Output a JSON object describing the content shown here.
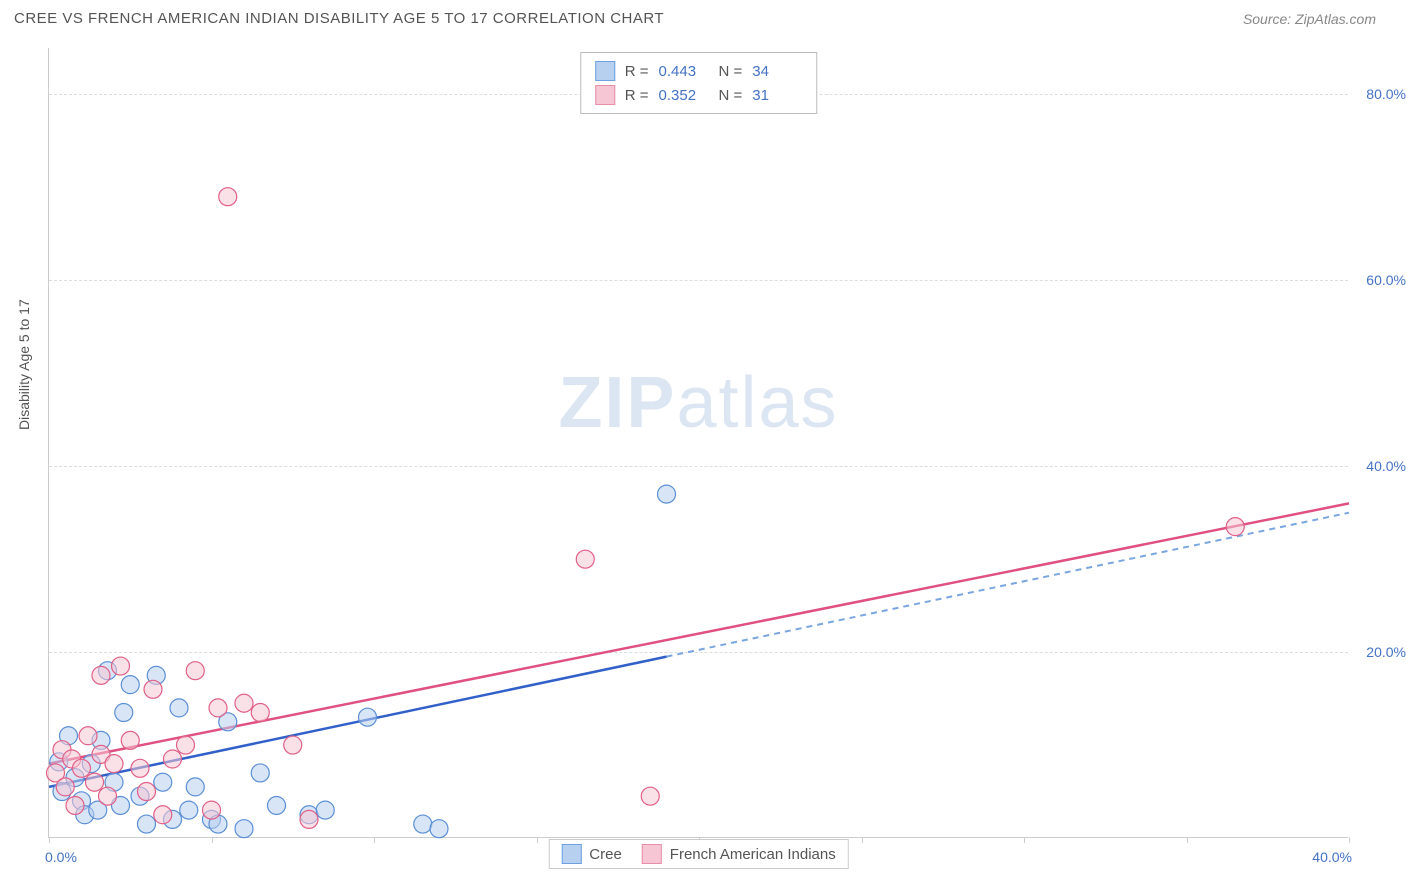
{
  "header": {
    "title": "CREE VS FRENCH AMERICAN INDIAN DISABILITY AGE 5 TO 17 CORRELATION CHART",
    "source": "Source: ZipAtlas.com"
  },
  "watermark": {
    "zip": "ZIP",
    "atlas": "atlas"
  },
  "chart": {
    "type": "scatter",
    "ylabel": "Disability Age 5 to 17",
    "xlim": [
      0,
      40
    ],
    "ylim": [
      0,
      85
    ],
    "xticks": [
      0,
      5,
      10,
      15,
      20,
      25,
      30,
      35,
      40
    ],
    "yticks": [
      20,
      40,
      60,
      80
    ],
    "xlabel_min": "0.0%",
    "xlabel_max": "40.0%",
    "ytick_labels": [
      "20.0%",
      "40.0%",
      "60.0%",
      "80.0%"
    ],
    "background_color": "#ffffff",
    "grid_color": "#dddddd",
    "axis_color": "#cccccc",
    "axis_label_color": "#4472c4",
    "marker_radius": 9,
    "marker_opacity": 0.55,
    "marker_stroke_width": 1.2,
    "series": [
      {
        "name": "Cree",
        "swatch_fill": "#b8d0f0",
        "swatch_stroke": "#6fa0e0",
        "marker_fill": "#b8d0f0",
        "marker_stroke": "#5b8fd6",
        "line_color": "#3060c8",
        "line_dash_color": "#7aa6e0",
        "R": "0.443",
        "N": "34",
        "trend": {
          "x1": 0,
          "y1": 5.5,
          "x2": 40,
          "y2": 35.0,
          "solid_until_x": 19
        },
        "points": [
          [
            0.3,
            8.2
          ],
          [
            0.4,
            5.0
          ],
          [
            0.6,
            11.0
          ],
          [
            0.8,
            6.5
          ],
          [
            1.0,
            4.0
          ],
          [
            1.1,
            2.5
          ],
          [
            1.3,
            8.0
          ],
          [
            1.5,
            3.0
          ],
          [
            1.6,
            10.5
          ],
          [
            1.8,
            18.0
          ],
          [
            2.0,
            6.0
          ],
          [
            2.2,
            3.5
          ],
          [
            2.3,
            13.5
          ],
          [
            2.5,
            16.5
          ],
          [
            2.8,
            4.5
          ],
          [
            3.0,
            1.5
          ],
          [
            3.3,
            17.5
          ],
          [
            3.5,
            6.0
          ],
          [
            3.8,
            2.0
          ],
          [
            4.0,
            14.0
          ],
          [
            4.3,
            3.0
          ],
          [
            4.5,
            5.5
          ],
          [
            5.0,
            2.0
          ],
          [
            5.2,
            1.5
          ],
          [
            5.5,
            12.5
          ],
          [
            6.0,
            1.0
          ],
          [
            6.5,
            7.0
          ],
          [
            7.0,
            3.5
          ],
          [
            8.0,
            2.5
          ],
          [
            8.5,
            3.0
          ],
          [
            9.8,
            13.0
          ],
          [
            11.5,
            1.5
          ],
          [
            12.0,
            1.0
          ],
          [
            19.0,
            37.0
          ]
        ]
      },
      {
        "name": "French American Indians",
        "swatch_fill": "#f6c6d4",
        "swatch_stroke": "#e88fa8",
        "marker_fill": "#f6c6d4",
        "marker_stroke": "#e06088",
        "line_color": "#e05080",
        "R": "0.352",
        "N": "31",
        "trend": {
          "x1": 0,
          "y1": 8.0,
          "x2": 40,
          "y2": 36.0
        },
        "points": [
          [
            0.2,
            7.0
          ],
          [
            0.4,
            9.5
          ],
          [
            0.5,
            5.5
          ],
          [
            0.7,
            8.5
          ],
          [
            0.8,
            3.5
          ],
          [
            1.0,
            7.5
          ],
          [
            1.2,
            11.0
          ],
          [
            1.4,
            6.0
          ],
          [
            1.6,
            9.0
          ],
          [
            1.6,
            17.5
          ],
          [
            1.8,
            4.5
          ],
          [
            2.0,
            8.0
          ],
          [
            2.2,
            18.5
          ],
          [
            2.5,
            10.5
          ],
          [
            2.8,
            7.5
          ],
          [
            3.0,
            5.0
          ],
          [
            3.2,
            16.0
          ],
          [
            3.5,
            2.5
          ],
          [
            3.8,
            8.5
          ],
          [
            4.2,
            10.0
          ],
          [
            4.5,
            18.0
          ],
          [
            5.0,
            3.0
          ],
          [
            5.2,
            14.0
          ],
          [
            5.5,
            69.0
          ],
          [
            6.0,
            14.5
          ],
          [
            6.5,
            13.5
          ],
          [
            7.5,
            10.0
          ],
          [
            8.0,
            2.0
          ],
          [
            16.5,
            30.0
          ],
          [
            18.5,
            4.5
          ],
          [
            36.5,
            33.5
          ]
        ]
      }
    ]
  },
  "legend": {
    "items": [
      {
        "label": "Cree"
      },
      {
        "label": "French American Indians"
      }
    ]
  }
}
